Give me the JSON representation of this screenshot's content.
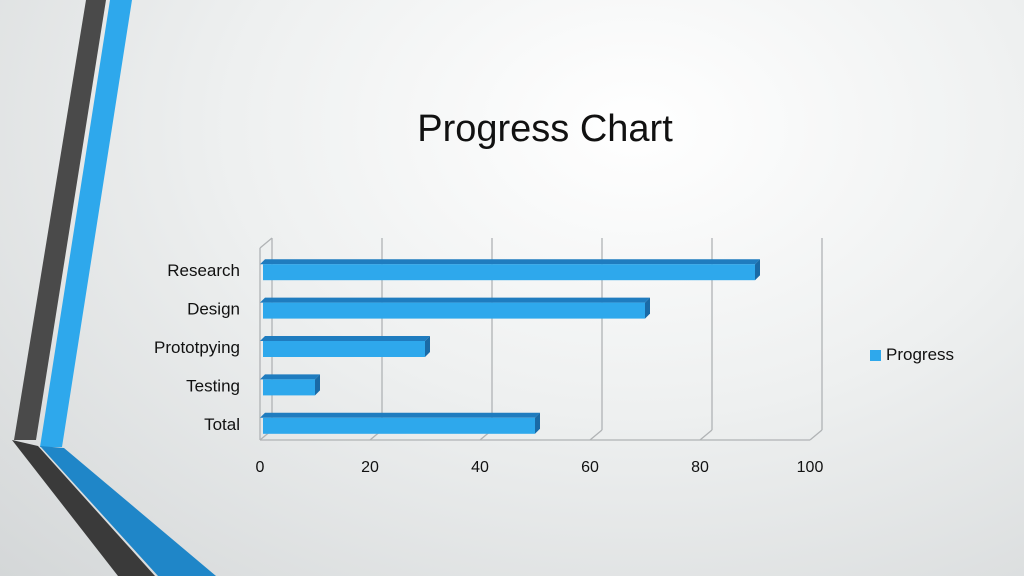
{
  "title": "Progress Chart",
  "colors": {
    "bar_front": "#2ea8ec",
    "bar_top": "#1f7cbf",
    "bar_side": "#1a6aa6",
    "accent_dark": "#4a4a4a",
    "accent_blue": "#2ea8ec"
  },
  "chart_data": {
    "type": "bar",
    "orientation": "horizontal",
    "categories": [
      "Research",
      "Design",
      "Prototpying",
      "Testing",
      "Total"
    ],
    "series": [
      {
        "name": "Progress",
        "values": [
          90,
          70,
          30,
          10,
          50
        ]
      }
    ],
    "xlim": [
      0,
      100
    ],
    "xticks": [
      "0",
      "20",
      "40",
      "60",
      "80",
      "100"
    ],
    "grid": true,
    "legend_position": "right"
  }
}
